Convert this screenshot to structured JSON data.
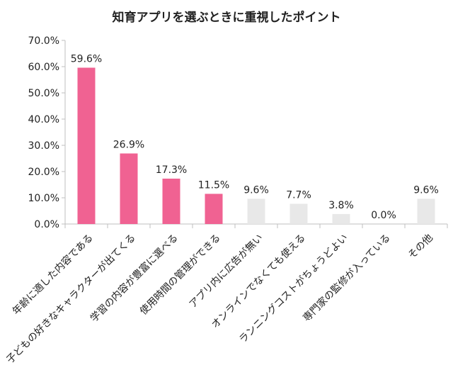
{
  "chart_data": {
    "type": "bar",
    "title": "知育アプリを選ぶときに重視したポイント",
    "xlabel": "",
    "ylabel": "",
    "ylim": [
      0,
      70
    ],
    "yticks": [
      "0.0%",
      "10.0%",
      "20.0%",
      "30.0%",
      "40.0%",
      "50.0%",
      "60.0%",
      "70.0%"
    ],
    "categories": [
      "年齢に適した内容である",
      "子どもの好きなキャラクターが出てくる",
      "学習の内容が豊富に選べる",
      "使用時間の管理ができる",
      "アプリ内に広告が無い",
      "オンラインでなくても使える",
      "ランニングコストがちょうどよい",
      "専門家の監修が入っている",
      "その他"
    ],
    "values": [
      59.6,
      26.9,
      17.3,
      11.5,
      9.6,
      7.7,
      3.8,
      0.0,
      9.6
    ],
    "labels": [
      "59.6%",
      "26.9%",
      "17.3%",
      "11.5%",
      "9.6%",
      "7.7%",
      "3.8%",
      "0.0%",
      "9.6%"
    ],
    "highlighted": [
      true,
      true,
      true,
      true,
      false,
      false,
      false,
      false,
      false
    ],
    "colors": {
      "highlight": "#f06292",
      "other": "#e8e8e8",
      "axis": "#bfbfbf"
    },
    "grid": false
  }
}
